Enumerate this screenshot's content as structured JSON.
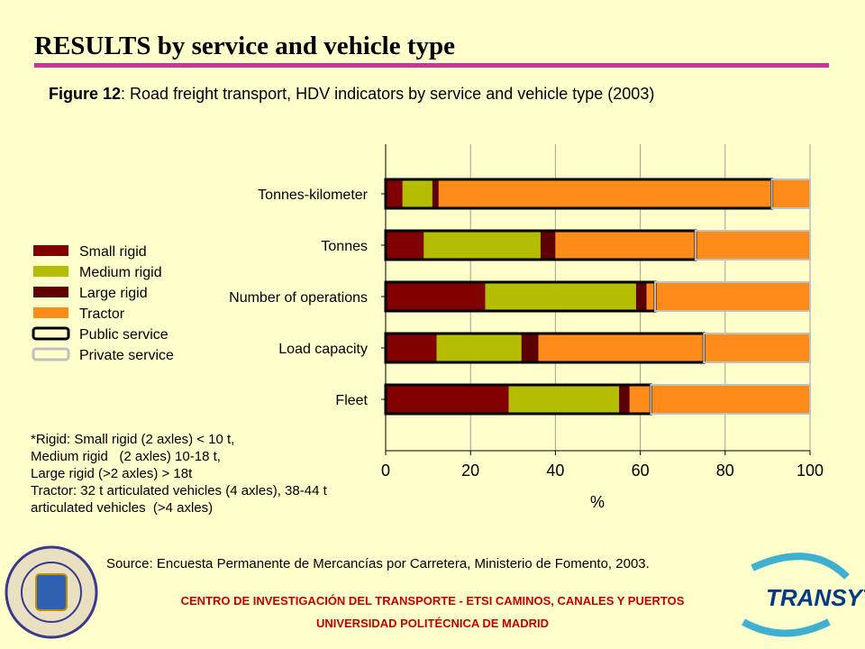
{
  "header": {
    "title": "RESULTS by service and vehicle type",
    "figure_label": "Figure 12",
    "caption": ": Road freight transport, HDV indicators by service and vehicle type (2003)"
  },
  "chart_data": {
    "type": "stacked_bar_horizontal",
    "categories": [
      "Tonnes-kilometer",
      "Tonnes",
      "Number of operations",
      "Load capacity",
      "Fleet"
    ],
    "series": [
      {
        "name": "Small rigid",
        "color": "#800000",
        "values": [
          4,
          9,
          23.5,
          12,
          29
        ]
      },
      {
        "name": "Medium rigid",
        "color": "#b5bd00",
        "values": [
          7,
          27.5,
          35.5,
          20,
          26
        ]
      },
      {
        "name": "Large rigid",
        "color": "#5c0000",
        "values": [
          1.5,
          3.5,
          2.5,
          4,
          2.5
        ]
      },
      {
        "name": "Tractor",
        "color": "#ff8c1a",
        "values": [
          87.5,
          60,
          38.5,
          64,
          42.5
        ]
      }
    ],
    "service_series": [
      {
        "name": "Public service",
        "color": "#000000",
        "values": [
          91,
          73,
          63.5,
          75,
          62.5
        ]
      },
      {
        "name": "Private service",
        "color": "#c0c0c0",
        "values": [
          9,
          27,
          36.5,
          25,
          37.5
        ]
      }
    ],
    "xlim": [
      0,
      100
    ],
    "xticks": [
      0,
      20,
      40,
      60,
      80,
      100
    ],
    "xlabel": "%",
    "grid": true
  },
  "notes": [
    "*Rigid: Small rigid (2 axles) < 10 t,",
    "Medium rigid   (2 axles) 10-18 t,",
    "Large rigid (>2 axles) > 18t",
    "Tractor: 32 t articulated vehicles (4 axles), 38-44 t",
    "articulated vehicles  (>4 axles)"
  ],
  "source": "Source: Encuesta Permanente de Mercancías por Carretera, Ministerio de Fomento, 2003.",
  "footer": [
    "CENTRO DE INVESTIGACIÓN DEL TRANSPORTE - ETSI CAMINOS, CANALES Y PUERTOS",
    "UNIVERSIDAD POLITÉCNICA DE MADRID"
  ],
  "logo_text": "TRANSYT"
}
